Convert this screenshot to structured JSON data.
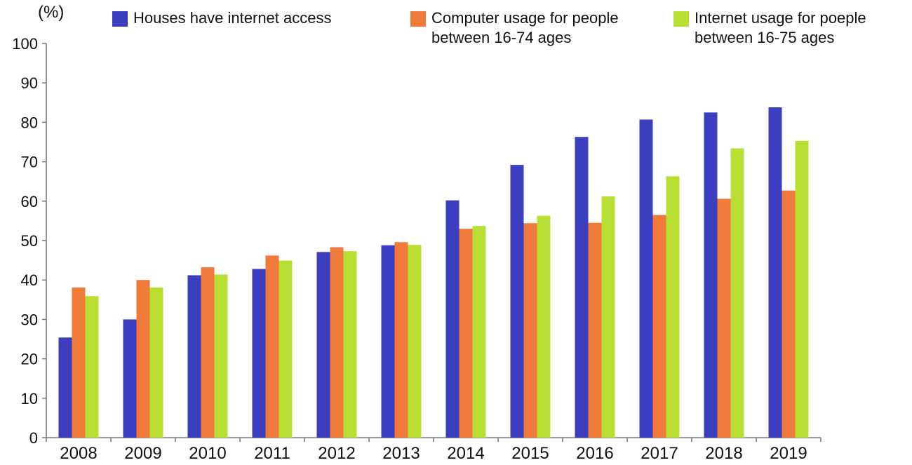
{
  "chart_data": {
    "type": "bar",
    "unit_label": "(%)",
    "categories": [
      "2008",
      "2009",
      "2010",
      "2011",
      "2012",
      "2013",
      "2014",
      "2015",
      "2016",
      "2017",
      "2018",
      "2019"
    ],
    "series": [
      {
        "name": "Houses have internet access",
        "color": "#3b3fbf",
        "values": [
          25.4,
          30.0,
          41.2,
          42.8,
          47.1,
          48.8,
          60.2,
          69.2,
          76.3,
          80.7,
          82.5,
          83.8
        ]
      },
      {
        "name": "Computer usage for people\nbetween 16-74 ages",
        "color": "#f07a3a",
        "values": [
          38.1,
          40.0,
          43.2,
          46.2,
          48.3,
          49.6,
          53.0,
          54.4,
          54.5,
          56.5,
          60.6,
          62.7
        ]
      },
      {
        "name": "Internet usage for poeple\nbetween 16-75 ages",
        "color": "#b9df35",
        "values": [
          35.9,
          38.1,
          41.4,
          44.9,
          47.3,
          48.9,
          53.7,
          56.3,
          61.2,
          66.3,
          73.4,
          75.3
        ]
      }
    ],
    "ylim": [
      0,
      100
    ],
    "yticks": [
      0,
      10,
      20,
      30,
      40,
      50,
      60,
      70,
      80,
      90,
      100
    ],
    "legend": "top",
    "grid": false
  }
}
